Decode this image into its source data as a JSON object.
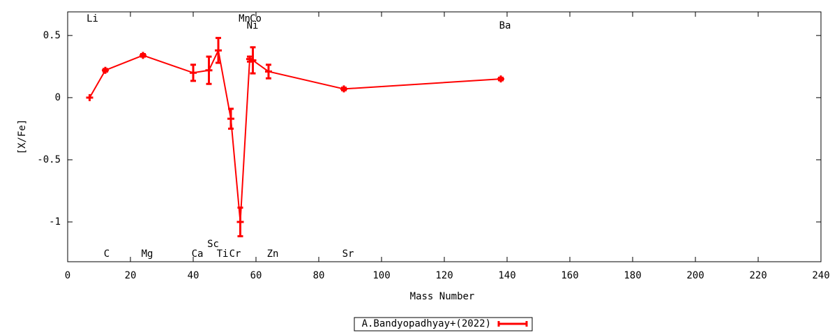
{
  "chart_data": {
    "type": "errorbar-line",
    "xlabel": "Mass Number",
    "ylabel": "[X/Fe]",
    "xlim": [
      0,
      240
    ],
    "xticks": [
      0,
      20,
      40,
      60,
      80,
      100,
      120,
      140,
      160,
      180,
      200,
      220,
      240
    ],
    "ylim": [
      -1.32,
      0.69
    ],
    "yticks": [
      -1,
      -0.5,
      0,
      0.5
    ],
    "legend": "bottom",
    "series": [
      {
        "name": "A.Bandyopadhyay+(2022)",
        "color": "#ff0000",
        "labels": [
          "Li",
          "C",
          "Mg",
          "Ca",
          "Sc",
          "Ti",
          "Cr",
          "Mn",
          "Ni",
          "Co",
          "Zn",
          "Sr",
          "Ba"
        ],
        "x": [
          7,
          12,
          24,
          40,
          45,
          48,
          52,
          55,
          58,
          59,
          64,
          88,
          138
        ],
        "values": [
          0,
          0.22,
          0.34,
          0.2,
          0.22,
          0.38,
          -0.17,
          -1.0,
          0.31,
          0.3,
          0.21,
          0.07,
          0.15
        ],
        "errors": [
          null,
          0.01,
          0.01,
          0.065,
          0.11,
          0.1,
          0.08,
          0.115,
          0.02,
          0.105,
          0.055,
          0.01,
          0.01
        ]
      }
    ]
  }
}
